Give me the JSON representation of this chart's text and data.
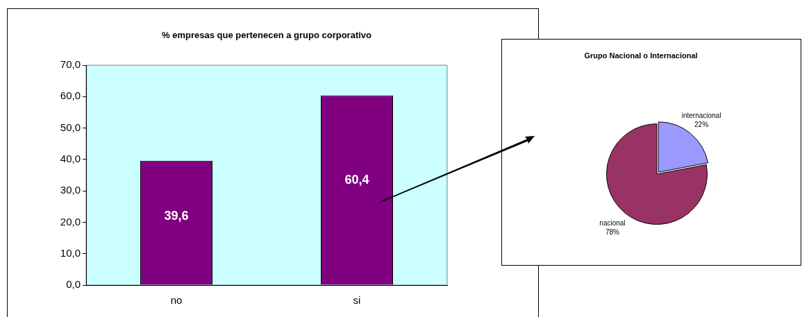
{
  "chart_data": [
    {
      "type": "bar",
      "title": "% empresas que pertenecen a grupo corporativo",
      "categories": [
        "no",
        "si"
      ],
      "values": [
        39.6,
        60.4
      ],
      "color": "#800080",
      "value_labels": [
        "39,6",
        "60,4"
      ],
      "ylim": [
        0,
        70
      ],
      "yticks": [
        {
          "value": 0,
          "label": "0,0"
        },
        {
          "value": 10,
          "label": "10,0"
        },
        {
          "value": 20,
          "label": "20,0"
        },
        {
          "value": 30,
          "label": "30,0"
        },
        {
          "value": 40,
          "label": "40,0"
        },
        {
          "value": 50,
          "label": "50,0"
        },
        {
          "value": 60,
          "label": "60,0"
        },
        {
          "value": 70,
          "label": "70,0"
        }
      ],
      "grid": false,
      "legend": false
    },
    {
      "type": "pie",
      "title": "Grupo Nacional o Internacional",
      "categories": [
        "internacional",
        "nacional"
      ],
      "values": [
        22,
        78
      ],
      "colors": [
        "#9999ff",
        "#993366"
      ],
      "value_labels": [
        "22%",
        "78%"
      ],
      "legend": false
    }
  ]
}
